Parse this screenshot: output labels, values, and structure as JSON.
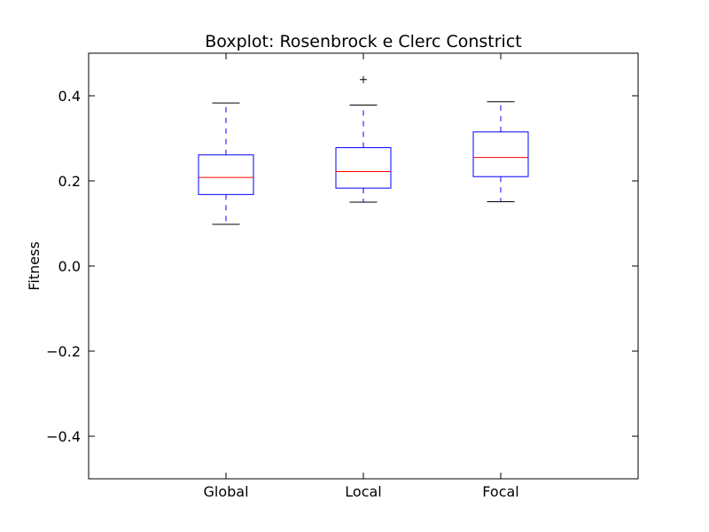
{
  "chart_data": {
    "type": "box",
    "title": "Boxplot: Rosenbrock e Clerc Constrict",
    "xlabel": "",
    "ylabel": "Fitness",
    "ylim": [
      -0.5,
      0.5
    ],
    "yticks": [
      0.4,
      0.2,
      0.0,
      -0.2,
      -0.4
    ],
    "ytick_labels": [
      "0.4",
      "0.2",
      "0.0",
      "−0.2",
      "−0.4"
    ],
    "categories": [
      "Global",
      "Local",
      "Focal"
    ],
    "boxes": [
      {
        "label": "Global",
        "whisker_low": 0.098,
        "q1": 0.168,
        "median": 0.208,
        "q3": 0.261,
        "whisker_high": 0.383,
        "outliers": []
      },
      {
        "label": "Local",
        "whisker_low": 0.15,
        "q1": 0.183,
        "median": 0.222,
        "q3": 0.278,
        "whisker_high": 0.378,
        "outliers": [
          0.438
        ]
      },
      {
        "label": "Focal",
        "whisker_low": 0.151,
        "q1": 0.21,
        "median": 0.255,
        "q3": 0.315,
        "whisker_high": 0.386,
        "outliers": []
      }
    ],
    "colors": {
      "box": "#0000ff",
      "median": "#ff0000",
      "whisker_cap": "#000000",
      "outlier": "#000000"
    },
    "grid": false,
    "legend": "none"
  }
}
